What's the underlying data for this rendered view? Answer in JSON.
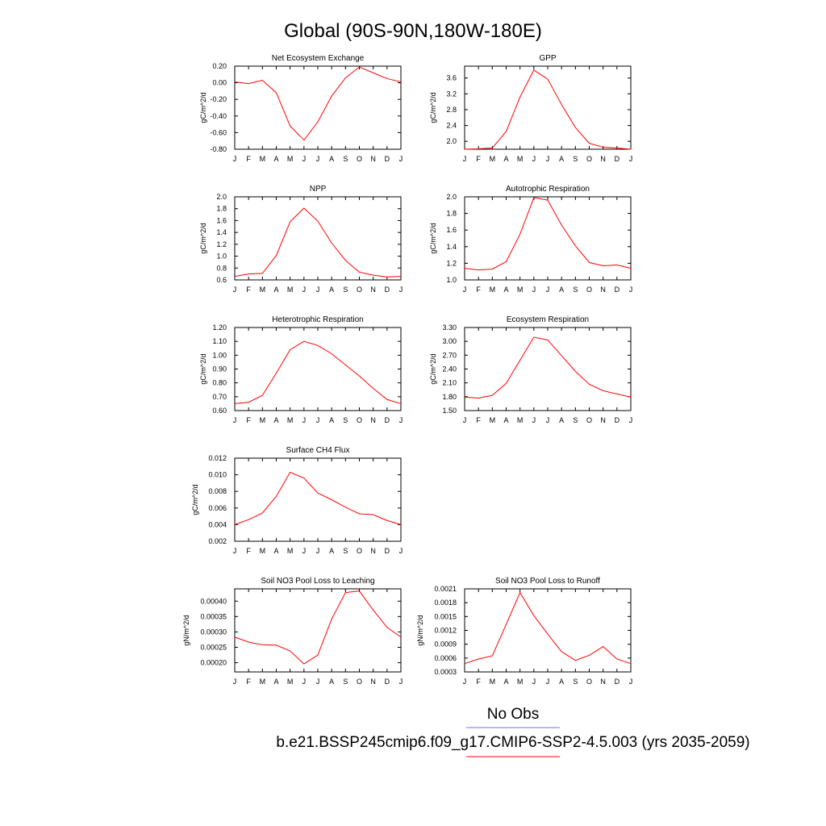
{
  "page_title": "Global (90S-90N,180W-180E)",
  "legend": {
    "obs_label": "No Obs",
    "obs_color": "#7070ff",
    "model_label": "b.e21.BSSP245cmip6.f09_g17.CMIP6-SSP2-4.5.003 (yrs 2035-2059)",
    "model_color": "#ff0000"
  },
  "chart_data": [
    {
      "type": "line",
      "title": "Net Ecosystem Exchange",
      "ylabel": "gC/m^2/d",
      "categories": [
        "J",
        "F",
        "M",
        "A",
        "M",
        "J",
        "J",
        "A",
        "S",
        "O",
        "N",
        "D",
        "J"
      ],
      "ylim": [
        -0.8,
        0.2
      ],
      "yticks": [
        0.2,
        0.0,
        -0.2,
        -0.4,
        -0.6,
        -0.8
      ],
      "ytick_labels": [
        "0.20",
        "0.00",
        "-0.20",
        "-0.40",
        "-0.60",
        "-0.80"
      ],
      "series": [
        {
          "color": "#ff0000",
          "values": [
            0.01,
            -0.01,
            0.03,
            -0.12,
            -0.52,
            -0.69,
            -0.47,
            -0.16,
            0.06,
            0.19,
            0.12,
            0.05,
            0.01
          ]
        }
      ]
    },
    {
      "type": "line",
      "title": "GPP",
      "ylabel": "gC/m^2/d",
      "categories": [
        "J",
        "F",
        "M",
        "A",
        "M",
        "J",
        "J",
        "A",
        "S",
        "O",
        "N",
        "D",
        "J"
      ],
      "ylim": [
        1.8,
        3.9
      ],
      "yticks": [
        3.6,
        3.2,
        2.8,
        2.4,
        2.0
      ],
      "ytick_labels": [
        "3.6",
        "3.2",
        "2.8",
        "2.4",
        "2.0"
      ],
      "series": [
        {
          "color": "#ff0000",
          "values": [
            1.8,
            1.81,
            1.83,
            2.25,
            3.12,
            3.8,
            3.57,
            2.93,
            2.35,
            1.95,
            1.85,
            1.83,
            1.8
          ]
        }
      ]
    },
    {
      "type": "line",
      "title": "NPP",
      "ylabel": "gC/m^2/d",
      "categories": [
        "J",
        "F",
        "M",
        "A",
        "M",
        "J",
        "J",
        "A",
        "S",
        "O",
        "N",
        "D",
        "J"
      ],
      "ylim": [
        0.6,
        2.0
      ],
      "yticks": [
        2.0,
        1.8,
        1.6,
        1.4,
        1.2,
        1.0,
        0.8,
        0.6
      ],
      "ytick_labels": [
        "2.0",
        "1.8",
        "1.6",
        "1.4",
        "1.2",
        "1.0",
        "0.8",
        "0.6"
      ],
      "series": [
        {
          "color": "#ff0000",
          "values": [
            0.66,
            0.7,
            0.71,
            1.01,
            1.58,
            1.81,
            1.59,
            1.22,
            0.93,
            0.73,
            0.68,
            0.65,
            0.66
          ]
        }
      ]
    },
    {
      "type": "line",
      "title": "Autotrophic Respiration",
      "ylabel": "gC/m^2/d",
      "categories": [
        "J",
        "F",
        "M",
        "A",
        "M",
        "J",
        "J",
        "A",
        "S",
        "O",
        "N",
        "D",
        "J"
      ],
      "ylim": [
        1.0,
        2.0
      ],
      "yticks": [
        2.0,
        1.8,
        1.6,
        1.4,
        1.2,
        1.0
      ],
      "ytick_labels": [
        "2.0",
        "1.8",
        "1.6",
        "1.4",
        "1.2",
        "1.0"
      ],
      "series": [
        {
          "color": "#ff0000",
          "values": [
            1.14,
            1.12,
            1.13,
            1.22,
            1.55,
            1.99,
            1.96,
            1.66,
            1.41,
            1.21,
            1.17,
            1.18,
            1.14
          ]
        }
      ]
    },
    {
      "type": "line",
      "title": "Heterotrophic Respiration",
      "ylabel": "gC/m^2/d",
      "categories": [
        "J",
        "F",
        "M",
        "A",
        "M",
        "J",
        "J",
        "A",
        "S",
        "O",
        "N",
        "D",
        "J"
      ],
      "ylim": [
        0.6,
        1.2
      ],
      "yticks": [
        1.2,
        1.1,
        1.0,
        0.9,
        0.8,
        0.7,
        0.6
      ],
      "ytick_labels": [
        "1.20",
        "1.10",
        "1.00",
        "0.90",
        "0.80",
        "0.70",
        "0.60"
      ],
      "series": [
        {
          "color": "#ff0000",
          "values": [
            0.65,
            0.66,
            0.71,
            0.87,
            1.04,
            1.1,
            1.07,
            1.01,
            0.93,
            0.85,
            0.76,
            0.68,
            0.65
          ]
        }
      ]
    },
    {
      "type": "line",
      "title": "Ecosystem Respiration",
      "ylabel": "gC/m^2/d",
      "categories": [
        "J",
        "F",
        "M",
        "A",
        "M",
        "J",
        "J",
        "A",
        "S",
        "O",
        "N",
        "D",
        "J"
      ],
      "ylim": [
        1.5,
        3.3
      ],
      "yticks": [
        3.3,
        3.0,
        2.7,
        2.4,
        2.1,
        1.8,
        1.5
      ],
      "ytick_labels": [
        "3.30",
        "3.00",
        "2.70",
        "2.40",
        "2.10",
        "1.80",
        "1.50"
      ],
      "series": [
        {
          "color": "#ff0000",
          "values": [
            1.79,
            1.77,
            1.83,
            2.09,
            2.59,
            3.09,
            3.03,
            2.69,
            2.35,
            2.07,
            1.93,
            1.86,
            1.79
          ]
        }
      ]
    },
    {
      "type": "line",
      "title": "Surface CH4 Flux",
      "ylabel": "gC/m^2/d",
      "categories": [
        "J",
        "F",
        "M",
        "A",
        "M",
        "J",
        "J",
        "A",
        "S",
        "O",
        "N",
        "D",
        "J"
      ],
      "ylim": [
        0.002,
        0.012
      ],
      "yticks": [
        0.012,
        0.01,
        0.008,
        0.006,
        0.004,
        0.002
      ],
      "ytick_labels": [
        "0.012",
        "0.010",
        "0.008",
        "0.006",
        "0.004",
        "0.002"
      ],
      "series": [
        {
          "color": "#ff0000",
          "values": [
            0.004,
            0.0046,
            0.0054,
            0.0074,
            0.0103,
            0.0096,
            0.0078,
            0.007,
            0.0061,
            0.0053,
            0.0052,
            0.0045,
            0.004
          ]
        }
      ]
    },
    {
      "type": "line",
      "title": "Soil NO3 Pool Loss to Leaching",
      "ylabel": "gN/m^2/d",
      "categories": [
        "J",
        "F",
        "M",
        "A",
        "M",
        "J",
        "J",
        "A",
        "S",
        "O",
        "N",
        "D",
        "J"
      ],
      "ylim": [
        0.00017,
        0.00044
      ],
      "yticks": [
        0.0004,
        0.00035,
        0.0003,
        0.00025,
        0.0002
      ],
      "ytick_labels": [
        "0.00040",
        "0.00035",
        "0.00030",
        "0.00025",
        "0.00020"
      ],
      "series": [
        {
          "color": "#ff0000",
          "values": [
            0.000283,
            0.000267,
            0.000258,
            0.000257,
            0.000238,
            0.000196,
            0.000225,
            0.000342,
            0.000428,
            0.000433,
            0.000371,
            0.000315,
            0.000283
          ]
        }
      ]
    },
    {
      "type": "line",
      "title": "Soil NO3 Pool Loss to Runoff",
      "ylabel": "gN/m^2/d",
      "categories": [
        "J",
        "F",
        "M",
        "A",
        "M",
        "J",
        "J",
        "A",
        "S",
        "O",
        "N",
        "D",
        "J"
      ],
      "ylim": [
        0.0003,
        0.0021
      ],
      "yticks": [
        0.0021,
        0.0018,
        0.0015,
        0.0012,
        0.0009,
        0.0006,
        0.0003
      ],
      "ytick_labels": [
        "0.0021",
        "0.0018",
        "0.0015",
        "0.0012",
        "0.0009",
        "0.0006",
        "0.0003"
      ],
      "series": [
        {
          "color": "#ff0000",
          "values": [
            0.00048,
            0.00058,
            0.00065,
            0.00133,
            0.00202,
            0.00152,
            0.00112,
            0.00074,
            0.00055,
            0.00066,
            0.00085,
            0.00058,
            0.00048
          ]
        }
      ]
    }
  ]
}
